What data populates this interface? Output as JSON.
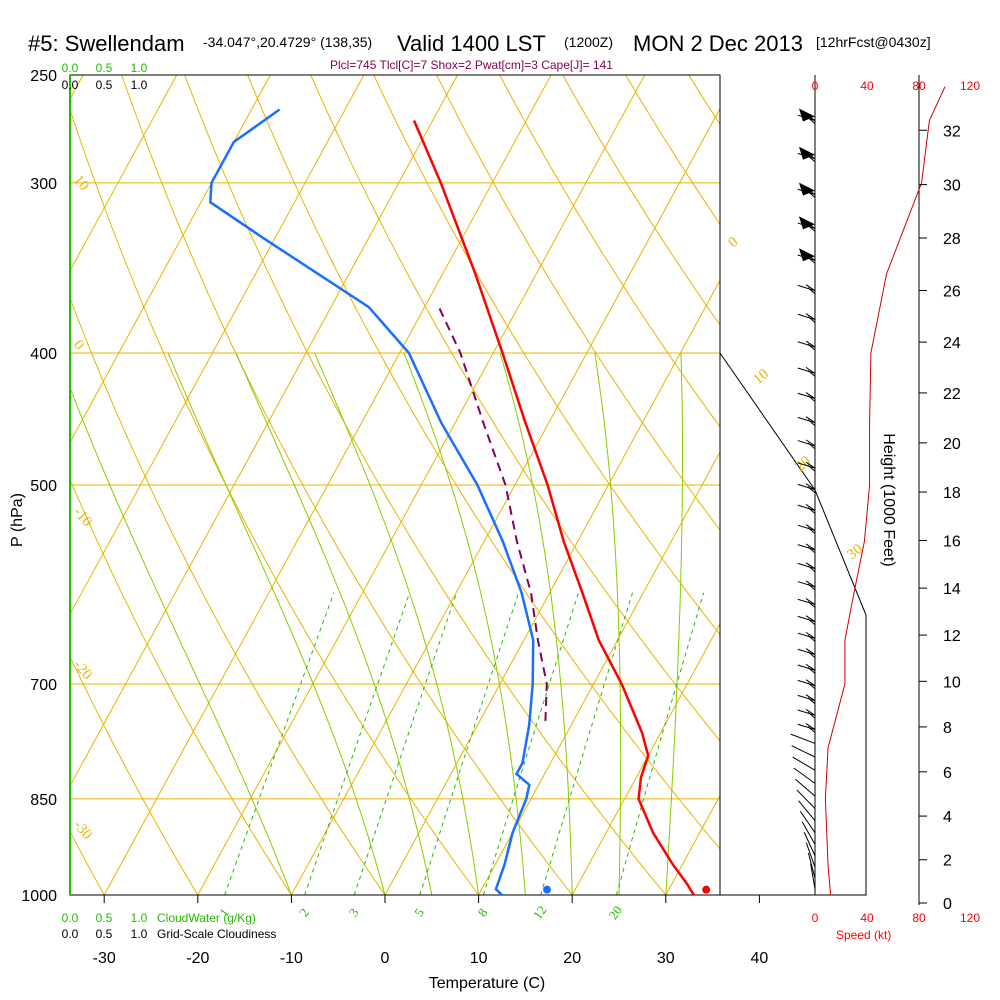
{
  "header": {
    "station": "#5: Swellendam",
    "coords": "-34.047°,20.4729° (138,35)",
    "valid": "Valid 1400 LST",
    "zulu": "(1200Z)",
    "date": "MON 2 Dec 2013",
    "forecast": "[12hrFcst@0430z]",
    "params": "Plcl=745 Tlcl[C]=7 Shox=2 Pwat[cm]=3 Cape[J]= 141"
  },
  "colors": {
    "temperature": "#ff0000",
    "dewpoint": "#1a6fff",
    "parcel": "#800060",
    "isotherm": "#e8b400",
    "mixing_ratio": "#22bb00",
    "wind_speed": "#cc0000"
  },
  "chart_data": {
    "type": "line",
    "xlabel": "Temperature (C)",
    "ylabel": "P (hPa)",
    "y2label": "Height (1000 Feet)",
    "x_ticks": [
      "-30",
      "-20",
      "-10",
      "0",
      "10",
      "20",
      "30",
      "40"
    ],
    "pressure_levels": [
      "250",
      "300",
      "400",
      "500",
      "700",
      "850",
      "1000"
    ],
    "height_ticks": [
      "0",
      "2",
      "4",
      "6",
      "8",
      "10",
      "12",
      "14",
      "16",
      "18",
      "20",
      "22",
      "24",
      "26",
      "28",
      "30",
      "32"
    ],
    "speed_axis": {
      "label": "Speed (kt)",
      "ticks": [
        "0",
        "40",
        "80",
        "120"
      ]
    },
    "cloud_water": {
      "label": "CloudWater (g/Kg)",
      "ticks": [
        "0.0",
        "0.5",
        "1.0"
      ]
    },
    "cloudiness": {
      "label": "Grid-Scale Cloudiness",
      "ticks": [
        "0.0",
        "0.5",
        "1.0"
      ]
    },
    "isotherm_labels": [
      "0",
      "10",
      "20",
      "30"
    ],
    "dry_adiabat_labels": [
      "10",
      "0",
      "-10",
      "-20",
      "-30"
    ],
    "mixing_ratio_labels": [
      "1",
      "2",
      "3",
      "5",
      "8",
      "12",
      "20"
    ],
    "series": [
      {
        "name": "temperature",
        "points": [
          [
            1000,
            33.0
          ],
          [
            980,
            31.5
          ],
          [
            950,
            29.0
          ],
          [
            900,
            25.0
          ],
          [
            850,
            21.5
          ],
          [
            820,
            20.5
          ],
          [
            790,
            20.0
          ],
          [
            760,
            18.0
          ],
          [
            700,
            13.0
          ],
          [
            650,
            8.0
          ],
          [
            600,
            3.5
          ],
          [
            550,
            -1.5
          ],
          [
            500,
            -6.5
          ],
          [
            450,
            -12.5
          ],
          [
            400,
            -19.0
          ],
          [
            350,
            -26.5
          ],
          [
            300,
            -35.5
          ],
          [
            270,
            -42.0
          ]
        ]
      },
      {
        "name": "dewpoint",
        "points": [
          [
            1000,
            12.5
          ],
          [
            990,
            11.5
          ],
          [
            950,
            11.0
          ],
          [
            900,
            10.0
          ],
          [
            850,
            9.5
          ],
          [
            830,
            9.0
          ],
          [
            815,
            7.0
          ],
          [
            800,
            7.0
          ],
          [
            750,
            5.5
          ],
          [
            700,
            3.5
          ],
          [
            650,
            1.0
          ],
          [
            600,
            -3.0
          ],
          [
            550,
            -8.0
          ],
          [
            500,
            -14.0
          ],
          [
            450,
            -21.5
          ],
          [
            400,
            -29.0
          ],
          [
            370,
            -36.0
          ],
          [
            330,
            -51.0
          ],
          [
            310,
            -59.0
          ],
          [
            300,
            -60.0
          ],
          [
            290,
            -60.0
          ],
          [
            280,
            -60.0
          ],
          [
            265,
            -57.0
          ]
        ]
      },
      {
        "name": "parcel",
        "points": [
          [
            745,
            7.0
          ],
          [
            700,
            5.0
          ],
          [
            650,
            1.5
          ],
          [
            600,
            -2.0
          ],
          [
            550,
            -6.5
          ],
          [
            500,
            -11.0
          ],
          [
            450,
            -17.0
          ],
          [
            400,
            -23.5
          ],
          [
            370,
            -28.5
          ]
        ]
      }
    ],
    "wind_speed_profile": [
      [
        1000,
        12
      ],
      [
        950,
        10
      ],
      [
        850,
        8
      ],
      [
        780,
        10
      ],
      [
        700,
        23
      ],
      [
        650,
        23
      ],
      [
        600,
        30
      ],
      [
        550,
        38
      ],
      [
        500,
        42
      ],
      [
        450,
        42
      ],
      [
        400,
        43
      ],
      [
        350,
        55
      ],
      [
        300,
        82
      ],
      [
        270,
        88
      ],
      [
        255,
        100
      ]
    ],
    "surface": {
      "temperature": 34.0,
      "dewpoint": 17.0,
      "pressure": 1000
    }
  }
}
